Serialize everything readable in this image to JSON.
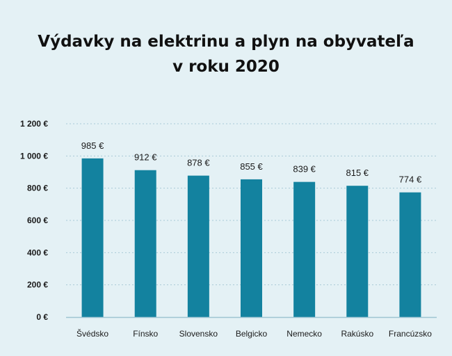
{
  "chart_data": {
    "type": "bar",
    "title_lines": [
      "Výdavky na elektrinu a plyn na obyvateľa",
      "v roku 2020"
    ],
    "categories": [
      "Švédsko",
      "Fínsko",
      "Slovensko",
      "Belgicko",
      "Nemecko",
      "Rakúsko",
      "Francúzsko"
    ],
    "values": [
      985,
      912,
      878,
      855,
      839,
      815,
      774
    ],
    "data_labels": [
      "985 €",
      "912 €",
      "878 €",
      "855 €",
      "839 €",
      "815 €",
      "774 €"
    ],
    "ytick_values": [
      0,
      200,
      400,
      600,
      800,
      1000,
      1200
    ],
    "ytick_labels": [
      "0 €",
      "200 €",
      "400 €",
      "600 €",
      "800 €",
      "1 000 €",
      "1 200 €"
    ],
    "ylim": [
      0,
      1200
    ],
    "xlabel": "",
    "ylabel": "",
    "grid": true,
    "bar_color": "#13829f",
    "grid_color": "#a9c9d6",
    "axis_color": "#9ec4d2"
  }
}
